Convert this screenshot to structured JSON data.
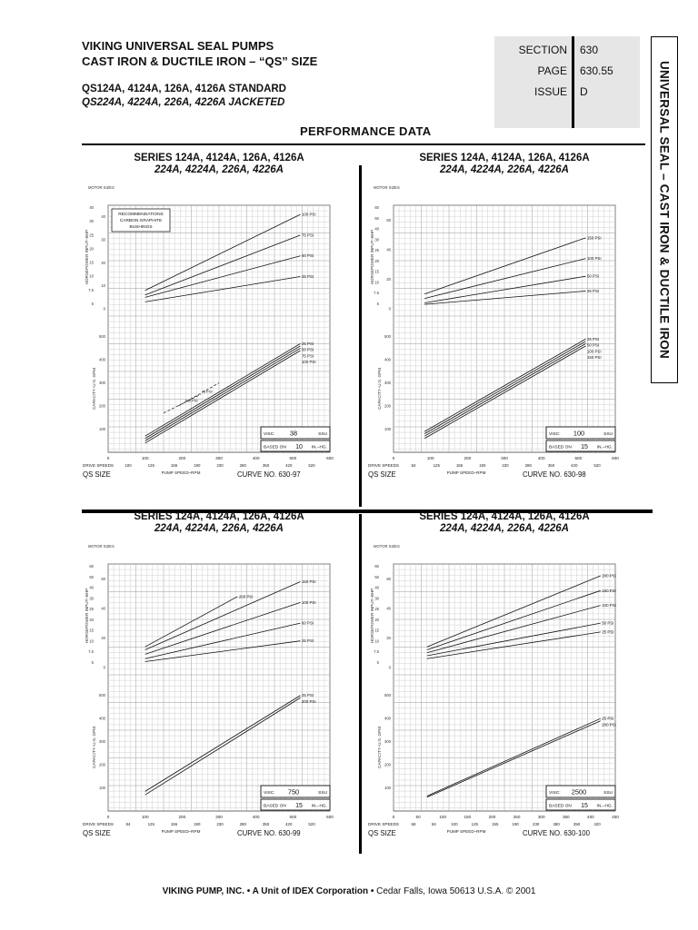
{
  "header": {
    "title_line1": "VIKING UNIVERSAL SEAL PUMPS",
    "title_line2": "CAST IRON & DUCTILE IRON – “QS” SIZE",
    "models_standard": "QS124A, 4124A, 126A, 4126A STANDARD",
    "models_jacketed": "QS224A, 4224A, 226A, 4226A JACKETED"
  },
  "reference": {
    "section_label": "SECTION",
    "section_value": "630",
    "page_label": "PAGE",
    "page_value": "630.55",
    "issue_label": "ISSUE",
    "issue_value": "D"
  },
  "side_tab": "UNIVERSAL SEAL – CAST IRON & DUCTILE IRON",
  "page_title": "PERFORMANCE DATA",
  "common": {
    "motor_sizes": "MOTOR SIZES",
    "hp_axis": "HORSEPOWER INPUT–BHP",
    "cap_axis": "CAPACITY–U.S. GPM",
    "drive_speeds": "DRIVE SPEEDS",
    "qs_size": "QS SIZE",
    "pump_speed": "PUMP SPEED–RPM",
    "visc_label": "VISC:",
    "visc_unit": "SSU",
    "based_label": "BASED ON",
    "based_unit": "IN.–HG.",
    "curve_label": "CURVE NO."
  },
  "charts": [
    {
      "series_line1": "SERIES 124A, 4124A, 126A, 4126A",
      "series_line2": "224A, 4224A, 226A, 4226A",
      "recommend": [
        "RECOMMENDATIONS",
        "CARBON GRAPHITE",
        "BUSHINGS"
      ],
      "visc": "38",
      "based_on": "10",
      "curve": "630-97",
      "rpm_ticks": [
        "0",
        "100",
        "200",
        "300",
        "400",
        "500",
        "600"
      ],
      "drive_speeds": [
        "100",
        "125",
        "155",
        "190",
        "230",
        "280",
        "350",
        "420",
        "520"
      ],
      "motor_sizes": [
        "40",
        "30",
        "25",
        "20",
        "15",
        "10",
        "7.5",
        "5"
      ],
      "hp_ticks": [
        "40",
        "30",
        "20",
        "10",
        "0"
      ],
      "cap_ticks": [
        "500",
        "400",
        "300",
        "200",
        "100"
      ],
      "chart_data": {
        "type": "line",
        "hp_series": [
          {
            "name": "100 PSI",
            "x": [
              100,
              520
            ],
            "y": [
              8,
              41
            ]
          },
          {
            "name": "75 PSI",
            "x": [
              100,
              520
            ],
            "y": [
              6,
              32
            ]
          },
          {
            "name": "50 PSI",
            "x": [
              100,
              520
            ],
            "y": [
              5,
              23
            ]
          },
          {
            "name": "25 PSI",
            "x": [
              100,
              520
            ],
            "y": [
              3,
              14
            ]
          }
        ],
        "cap_series": [
          {
            "name": "25 PSI",
            "x": [
              100,
              520
            ],
            "y": [
              70,
              470
            ]
          },
          {
            "name": "50 PSI",
            "x": [
              100,
              520
            ],
            "y": [
              60,
              460
            ]
          },
          {
            "name": "75 PSI",
            "x": [
              100,
              520
            ],
            "y": [
              50,
              450
            ]
          },
          {
            "name": "100 PSI",
            "x": [
              100,
              520
            ],
            "y": [
              40,
              440
            ]
          }
        ],
        "cap_dashed": [
          {
            "name": "75 PSI",
            "x": [
              190,
              300
            ],
            "y": [
              200,
              300
            ]
          },
          {
            "name": "100 PSI",
            "x": [
              150,
              250
            ],
            "y": [
              170,
              250
            ]
          }
        ],
        "xlabel": "PUMP SPEED–RPM",
        "ylabel_hp": "HORSEPOWER INPUT–BHP",
        "ylabel_cap": "CAPACITY–U.S. GPM",
        "xlim": [
          0,
          600
        ],
        "hp_ylim": [
          0,
          45
        ],
        "cap_ylim": [
          0,
          550
        ]
      }
    },
    {
      "series_line1": "SERIES 124A, 4124A, 126A, 4126A",
      "series_line2": "224A, 4224A, 226A, 4226A",
      "recommend": null,
      "visc": "100",
      "based_on": "15",
      "curve": "630-98",
      "rpm_ticks": [
        "0",
        "100",
        "200",
        "300",
        "400",
        "500",
        "600"
      ],
      "drive_speeds": [
        "84",
        "125",
        "155",
        "190",
        "230",
        "280",
        "350",
        "420",
        "520"
      ],
      "motor_sizes": [
        "60",
        "50",
        "40",
        "30",
        "25",
        "20",
        "15",
        "10",
        "7.5",
        "5"
      ],
      "hp_ticks": [
        "60",
        "40",
        "20",
        "0"
      ],
      "cap_ticks": [
        "500",
        "400",
        "300",
        "200",
        "100"
      ],
      "chart_data": {
        "type": "line",
        "hp_series": [
          {
            "name": "150 PSI",
            "x": [
              84,
              520
            ],
            "y": [
              10,
              48
            ]
          },
          {
            "name": "100 PSI",
            "x": [
              84,
              520
            ],
            "y": [
              7,
              34
            ]
          },
          {
            "name": "50 PSI",
            "x": [
              84,
              520
            ],
            "y": [
              4,
              22
            ]
          },
          {
            "name": "25 PSI",
            "x": [
              84,
              520
            ],
            "y": [
              3,
              12
            ]
          }
        ],
        "cap_series": [
          {
            "name": "25 PSI",
            "x": [
              84,
              520
            ],
            "y": [
              90,
              490
            ]
          },
          {
            "name": "50 PSI",
            "x": [
              84,
              520
            ],
            "y": [
              80,
              480
            ]
          },
          {
            "name": "100 PSI",
            "x": [
              84,
              520
            ],
            "y": [
              70,
              470
            ]
          },
          {
            "name": "150 PSI",
            "x": [
              84,
              520
            ],
            "y": [
              60,
              460
            ]
          }
        ],
        "xlabel": "PUMP SPEED–RPM",
        "ylabel_hp": "HORSEPOWER INPUT–BHP",
        "ylabel_cap": "CAPACITY–U.S. GPM",
        "xlim": [
          0,
          600
        ],
        "hp_ylim": [
          0,
          70
        ],
        "cap_ylim": [
          0,
          550
        ]
      }
    },
    {
      "series_line1": "SERIES 124A, 4124A, 126A, 4126A",
      "series_line2": "224A, 4224A, 226A, 4226A",
      "recommend": null,
      "visc": "750",
      "based_on": "15",
      "curve": "630-99",
      "rpm_ticks": [
        "0",
        "100",
        "200",
        "300",
        "400",
        "500",
        "600"
      ],
      "drive_speeds": [
        "84",
        "125",
        "155",
        "190",
        "230",
        "280",
        "350",
        "420",
        "520"
      ],
      "motor_sizes": [
        "60",
        "50",
        "40",
        "30",
        "25",
        "20",
        "15",
        "10",
        "7.5",
        "5"
      ],
      "hp_ticks": [
        "60",
        "40",
        "20",
        "0"
      ],
      "cap_ticks": [
        "500",
        "400",
        "300",
        "200",
        "100"
      ],
      "chart_data": {
        "type": "line",
        "hp_series": [
          {
            "name": "200 PSI",
            "x": [
              100,
              350
            ],
            "y": [
              14,
              48
            ]
          },
          {
            "name": "150 PSI",
            "x": [
              100,
              520
            ],
            "y": [
              12,
              58
            ]
          },
          {
            "name": "100 PSI",
            "x": [
              100,
              520
            ],
            "y": [
              9,
              44
            ]
          },
          {
            "name": "60 PSI",
            "x": [
              100,
              520
            ],
            "y": [
              6,
              30
            ]
          },
          {
            "name": "25 PSI",
            "x": [
              100,
              520
            ],
            "y": [
              4,
              18
            ]
          }
        ],
        "cap_series": [
          {
            "name": "25 PSI",
            "x": [
              100,
              520
            ],
            "y": [
              85,
              500
            ]
          },
          {
            "name": "200 PSI",
            "x": [
              100,
              520
            ],
            "y": [
              70,
              490
            ]
          }
        ],
        "xlabel": "PUMP SPEED–RPM",
        "ylabel_hp": "HORSEPOWER INPUT–BHP",
        "ylabel_cap": "CAPACITY–U.S. GPM",
        "xlim": [
          0,
          600
        ],
        "hp_ylim": [
          0,
          70
        ],
        "cap_ylim": [
          0,
          550
        ]
      }
    },
    {
      "series_line1": "SERIES 124A, 4124A, 126A, 4126A",
      "series_line2": "224A, 4224A, 226A, 4226A",
      "recommend": null,
      "visc": "2500",
      "based_on": "15",
      "curve": "630-100",
      "rpm_ticks": [
        "0",
        "50",
        "100",
        "150",
        "200",
        "250",
        "300",
        "350",
        "400",
        "450"
      ],
      "drive_speeds": [
        "68",
        "84",
        "100",
        "125",
        "155",
        "190",
        "230",
        "280",
        "350",
        "420"
      ],
      "motor_sizes": [
        "60",
        "50",
        "40",
        "30",
        "25",
        "20",
        "15",
        "10",
        "7.5",
        "5"
      ],
      "hp_ticks": [
        "60",
        "40",
        "20",
        "0"
      ],
      "cap_ticks": [
        "500",
        "400",
        "300",
        "200",
        "100"
      ],
      "chart_data": {
        "type": "line",
        "hp_series": [
          {
            "name": "200 PSI",
            "x": [
              68,
              420
            ],
            "y": [
              14,
              62
            ]
          },
          {
            "name": "150 PSI",
            "x": [
              68,
              420
            ],
            "y": [
              12,
              52
            ]
          },
          {
            "name": "100 PSI",
            "x": [
              68,
              420
            ],
            "y": [
              10,
              42
            ]
          },
          {
            "name": "50 PSI",
            "x": [
              68,
              420
            ],
            "y": [
              8,
              30
            ]
          },
          {
            "name": "25 PSI",
            "x": [
              68,
              420
            ],
            "y": [
              6,
              24
            ]
          }
        ],
        "cap_series": [
          {
            "name": "25 PSI",
            "x": [
              68,
              420
            ],
            "y": [
              65,
              400
            ]
          },
          {
            "name": "200 PSI",
            "x": [
              68,
              420
            ],
            "y": [
              60,
              390
            ]
          }
        ],
        "xlabel": "PUMP SPEED–RPM",
        "ylabel_hp": "HORSEPOWER INPUT–BHP",
        "ylabel_cap": "CAPACITY–U.S. GPM",
        "xlim": [
          0,
          450
        ],
        "hp_ylim": [
          0,
          70
        ],
        "cap_ylim": [
          0,
          550
        ]
      }
    }
  ],
  "footer": {
    "company": "VIKING PUMP, INC.",
    "sep1": " • ",
    "unit": "A Unit of IDEX Corporation",
    "sep2": " • ",
    "location": "Cedar Falls, Iowa 50613 U.S.A.",
    "copyright": "© 2001"
  }
}
